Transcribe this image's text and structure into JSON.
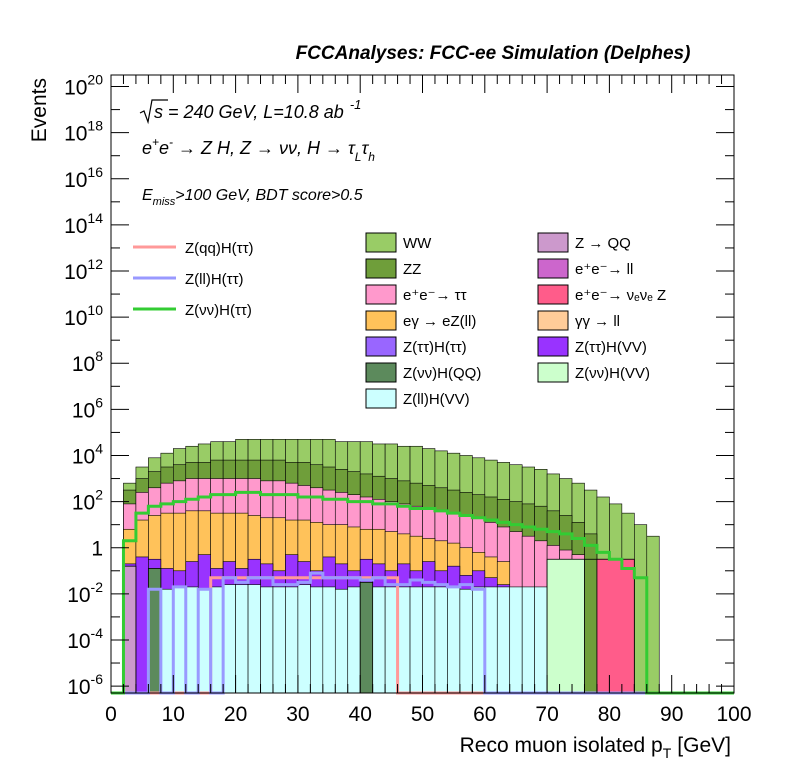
{
  "chart_data": {
    "type": "histogram",
    "title": "FCCAnalyses: FCC-ee Simulation (Delphes)",
    "xlabel": "Reco muon isolated p",
    "xlabel_sub": "T",
    "xlabel_unit": "[GeV]",
    "ylabel": "Events",
    "xlim": [
      0,
      100
    ],
    "ylim_log10": [
      -6.3,
      20.5
    ],
    "log_y": true,
    "grid": false,
    "x_ticks": [
      "0",
      "10",
      "20",
      "30",
      "40",
      "50",
      "60",
      "70",
      "80",
      "90",
      "100"
    ],
    "y_ticks": [
      {
        "base": "10",
        "exp": "20",
        "value": 20
      },
      {
        "base": "10",
        "exp": "18",
        "value": 18
      },
      {
        "base": "10",
        "exp": "16",
        "value": 16
      },
      {
        "base": "10",
        "exp": "14",
        "value": 14
      },
      {
        "base": "10",
        "exp": "12",
        "value": 12
      },
      {
        "base": "10",
        "exp": "10",
        "value": 10
      },
      {
        "base": "10",
        "exp": "8",
        "value": 8
      },
      {
        "base": "10",
        "exp": "6",
        "value": 6
      },
      {
        "base": "10",
        "exp": "4",
        "value": 4
      },
      {
        "base": "10",
        "exp": "2",
        "value": 2
      },
      {
        "base": "1",
        "exp": "",
        "value": 0
      },
      {
        "base": "10",
        "exp": "-2",
        "value": -2
      },
      {
        "base": "10",
        "exp": "-4",
        "value": -4
      },
      {
        "base": "10",
        "exp": "-6",
        "value": -6
      }
    ],
    "annotations": {
      "line1_sqrt": "s",
      "line1_rest": " = 240 GeV, L=10.8 ab",
      "line1_sup": "-1",
      "line2_e1": "e",
      "line2_e1sup": "+",
      "line2_e2": "e",
      "line2_e2sup": "-",
      "line2_a": " → Z H, Z  → νν, H  → τ",
      "line2_tauL_sub": "L",
      "line2_tau2": "τ",
      "line2_tauh_sub": "h",
      "line3_E": "E",
      "line3_sub": "miss",
      "line3_rest": ">100 GeV, BDT score>0.5"
    },
    "bin_centers": [
      1,
      3,
      5,
      7,
      9,
      11,
      13,
      15,
      17,
      19,
      21,
      23,
      25,
      27,
      29,
      31,
      33,
      35,
      37,
      39,
      41,
      43,
      45,
      47,
      49,
      51,
      53,
      55,
      57,
      59,
      61,
      63,
      65,
      67,
      69,
      71,
      73,
      75,
      77,
      79,
      81,
      83,
      85,
      87,
      89,
      91,
      93,
      95,
      97,
      99
    ],
    "stack_log10": {
      "total": [
        -6.3,
        2.8,
        3.5,
        3.9,
        4.1,
        4.3,
        4.4,
        4.5,
        4.6,
        4.6,
        4.7,
        4.7,
        4.7,
        4.7,
        4.7,
        4.7,
        4.7,
        4.7,
        4.6,
        4.6,
        4.6,
        4.5,
        4.5,
        4.4,
        4.4,
        4.3,
        4.2,
        4.1,
        4.0,
        3.9,
        3.8,
        3.7,
        3.6,
        3.5,
        3.4,
        3.2,
        3.0,
        2.8,
        2.5,
        2.2,
        1.9,
        1.5,
        1.0,
        0.5,
        -6.3,
        -6.3,
        -6.3,
        -6.3,
        -6.3,
        -6.3
      ],
      "no_ww": [
        -6.3,
        2.5,
        3.0,
        3.3,
        3.5,
        3.6,
        3.7,
        3.7,
        3.8,
        3.8,
        3.8,
        3.8,
        3.8,
        3.8,
        3.7,
        3.7,
        3.6,
        3.5,
        3.4,
        3.3,
        3.2,
        3.1,
        3.0,
        2.9,
        2.8,
        2.7,
        2.6,
        2.5,
        2.4,
        2.3,
        2.2,
        2.1,
        2.0,
        1.9,
        1.8,
        1.6,
        1.4,
        1.1,
        0.6,
        -0.5,
        -0.5,
        -0.5,
        -6.3,
        -6.3,
        -6.3,
        -6.3,
        -6.3,
        -6.3,
        -6.3,
        -6.3
      ],
      "ee_tautau": [
        -6.3,
        1.9,
        2.4,
        2.6,
        2.8,
        2.9,
        3.0,
        3.0,
        3.0,
        3.0,
        3.0,
        3.0,
        2.9,
        2.9,
        2.8,
        2.7,
        2.6,
        2.5,
        2.4,
        2.3,
        2.2,
        2.1,
        2.0,
        1.9,
        1.8,
        1.7,
        1.6,
        1.5,
        1.4,
        1.3,
        1.1,
        0.9,
        0.7,
        0.5,
        0.3,
        0.1,
        -0.1,
        -0.3,
        -6.3,
        -6.3,
        -6.3,
        -6.3,
        -6.3,
        -6.3,
        -6.3,
        -6.3,
        -6.3,
        -6.3,
        -6.3,
        -6.3
      ],
      "egamma": [
        -6.3,
        0.8,
        1.2,
        1.4,
        1.5,
        1.5,
        1.6,
        1.6,
        1.5,
        1.5,
        1.5,
        1.4,
        1.3,
        1.3,
        1.2,
        1.2,
        1.1,
        1.0,
        1.0,
        0.9,
        0.8,
        0.8,
        0.7,
        0.6,
        0.5,
        0.4,
        0.3,
        0.2,
        0.0,
        -0.2,
        -0.4,
        -0.6,
        -6.3,
        -6.3,
        -6.3,
        -6.3,
        -6.3,
        -6.3,
        -6.3,
        -6.3,
        -6.3,
        -6.3,
        -6.3,
        -6.3,
        -6.3,
        -6.3,
        -6.3,
        -6.3,
        -6.3,
        -6.3
      ],
      "hvv": [
        -6.3,
        -0.7,
        -0.4,
        -0.5,
        -0.9,
        -1.0,
        -0.6,
        -0.3,
        -0.9,
        -0.6,
        -0.9,
        -0.5,
        -0.7,
        -1.0,
        -0.3,
        -0.6,
        -1.0,
        -0.4,
        -0.7,
        -1.0,
        -0.5,
        -0.7,
        -1.0,
        -0.7,
        -1.0,
        -0.6,
        -1.0,
        -0.8,
        -1.2,
        -1.0,
        -1.3,
        -1.6,
        -2.0,
        -2.3,
        -6.3,
        -6.3,
        -6.3,
        -6.3,
        -6.3,
        -6.3,
        -6.3,
        -6.3,
        -6.3,
        -6.3,
        -6.3,
        -6.3,
        -6.3,
        -6.3,
        -6.3,
        -6.3
      ],
      "zllhvv": [
        -6.3,
        -6.3,
        -6.3,
        -1.8,
        -1.8,
        -1.7,
        -1.7,
        -1.8,
        -1.7,
        -1.6,
        -1.6,
        -1.6,
        -1.7,
        -1.7,
        -1.7,
        -1.6,
        -1.7,
        -1.7,
        -1.8,
        -1.7,
        -1.7,
        -1.7,
        -1.7,
        -1.7,
        -1.7,
        -1.7,
        -1.7,
        -1.7,
        -1.8,
        -1.7,
        -1.7,
        -1.7,
        -1.7,
        -1.7,
        -1.7,
        -1.7,
        -1.7,
        -1.7,
        -6.3,
        -6.3,
        -6.3,
        -6.3,
        -6.3,
        -6.3,
        -6.3,
        -6.3,
        -6.3,
        -6.3,
        -6.3,
        -6.3
      ]
    },
    "stack_colors": {
      "total": "#99cc66",
      "no_ww": "#6f9e3a",
      "ee_tautau": "#ff99cc",
      "egamma": "#ffc25a",
      "hvv": "#9933ff",
      "zllhvv": "#ccffff"
    },
    "extra_bars": [
      {
        "name": "ZZ",
        "lo": 76,
        "hi": 78,
        "top": -0.5,
        "color": "#6f9e3a"
      },
      {
        "name": "e⁺e⁻→ νₑνₑ Z",
        "lo": 78,
        "hi": 84,
        "top": -0.5,
        "color": "#ff5c8a"
      },
      {
        "name": "Z(νν)H(QQ)",
        "lo": 40,
        "hi": 42,
        "top": -1.5,
        "color": "#5c8a5c"
      },
      {
        "name": "Z(νν)H(QQ)",
        "lo": 6,
        "hi": 8,
        "top": -0.9,
        "color": "#5c8a5c"
      },
      {
        "name": "Z → QQ",
        "lo": 2,
        "hi": 4,
        "top": -0.8,
        "color": "#cc99cc"
      },
      {
        "name": "Z(νν)H(VV)",
        "lo": 70,
        "hi": 76,
        "top": -0.5,
        "color": "#ccffcc"
      }
    ],
    "signal_lines": [
      {
        "name": "Z(qq)H(ττ)",
        "color": "#ff9999",
        "values_log10": [
          -6.3,
          -6.3,
          -6.3,
          -6.3,
          -6.3,
          -6.3,
          -6.3,
          -6.3,
          -1.3,
          -1.3,
          -1.3,
          -1.3,
          -1.3,
          -1.3,
          -1.3,
          -1.3,
          -1.3,
          -1.3,
          -1.3,
          -1.3,
          -1.3,
          -1.3,
          -1.3,
          -6.3,
          -6.3,
          -6.3,
          -6.3,
          -6.3,
          -6.3,
          -6.3,
          -6.3,
          -6.3,
          -6.3,
          -6.3,
          -6.3,
          -6.3,
          -6.3,
          -6.3,
          -6.3,
          -6.3,
          -6.3,
          -6.3,
          -6.3,
          -6.3,
          -6.3,
          -6.3,
          -6.3,
          -6.3,
          -6.3,
          -6.3
        ]
      },
      {
        "name": "Z(ll)H(ττ)",
        "color": "#9999ff",
        "values_log10": [
          -6.3,
          -6.3,
          -6.3,
          -1.8,
          -6.3,
          -1.7,
          -6.3,
          -1.8,
          -6.3,
          -1.3,
          -1.5,
          -1.3,
          -1.3,
          -1.6,
          -1.6,
          -1.5,
          -1.1,
          -1.3,
          -1.3,
          -1.3,
          -1.4,
          -1.3,
          -1.6,
          -1.6,
          -1.4,
          -1.5,
          -1.6,
          -1.7,
          -1.6,
          -1.8,
          -6.3,
          -6.3,
          -6.3,
          -6.3,
          -6.3,
          -6.3,
          -6.3,
          -6.3,
          -6.3,
          -6.3,
          -6.3,
          -6.3,
          -6.3,
          -6.3,
          -6.3,
          -6.3,
          -6.3,
          -6.3,
          -6.3,
          -6.3
        ]
      },
      {
        "name": "Z(νν)H(ττ)",
        "color": "#33cc33",
        "values_log10": [
          -6.3,
          0.3,
          1.5,
          1.8,
          1.9,
          2.0,
          2.1,
          2.2,
          2.3,
          2.3,
          2.4,
          2.4,
          2.3,
          2.3,
          2.3,
          2.2,
          2.2,
          2.1,
          2.1,
          2.0,
          2.0,
          1.9,
          1.9,
          1.8,
          1.7,
          1.7,
          1.6,
          1.5,
          1.4,
          1.3,
          1.2,
          1.1,
          1.0,
          0.9,
          0.8,
          0.7,
          0.6,
          0.4,
          0.1,
          -0.2,
          -0.5,
          -0.9,
          -1.3,
          -6.3,
          -6.3,
          -6.3,
          -6.3,
          -6.3,
          -6.3,
          -6.3
        ]
      }
    ],
    "legend_signals": [
      {
        "label": "Z(qq)H(ττ)",
        "color": "#ff9999"
      },
      {
        "label": "Z(ll)H(ττ)",
        "color": "#9999ff"
      },
      {
        "label": "Z(νν)H(ττ)",
        "color": "#33cc33"
      }
    ],
    "legend_backgrounds": [
      {
        "label": "WW",
        "color": "#99cc66",
        "sup": ""
      },
      {
        "label": "Z → QQ",
        "color": "#cc99cc",
        "sup": ""
      },
      {
        "label": "ZZ",
        "color": "#6f9e3a",
        "sup": ""
      },
      {
        "label": "e⁺e⁻→ ll",
        "color": "#cc66cc",
        "sup": ""
      },
      {
        "label": "e⁺e⁻→ ττ",
        "color": "#ff99cc",
        "sup": ""
      },
      {
        "label": "e⁺e⁻→ νₑνₑ Z",
        "color": "#ff5c8a",
        "sup": ""
      },
      {
        "label": "eγ → eZ(ll)",
        "color": "#ffc25a",
        "sup": ""
      },
      {
        "label": "γγ → ll",
        "color": "#ffcc99",
        "sup": ""
      },
      {
        "label": "Z(ττ)H(ττ)",
        "color": "#9966ff",
        "sup": ""
      },
      {
        "label": "Z(ττ)H(VV)",
        "color": "#9933ff",
        "sup": ""
      },
      {
        "label": "Z(νν)H(QQ)",
        "color": "#5c8a5c",
        "sup": ""
      },
      {
        "label": "Z(νν)H(VV)",
        "color": "#ccffcc",
        "sup": ""
      },
      {
        "label": "Z(ll)H(VV)",
        "color": "#ccffff",
        "sup": ""
      }
    ]
  }
}
